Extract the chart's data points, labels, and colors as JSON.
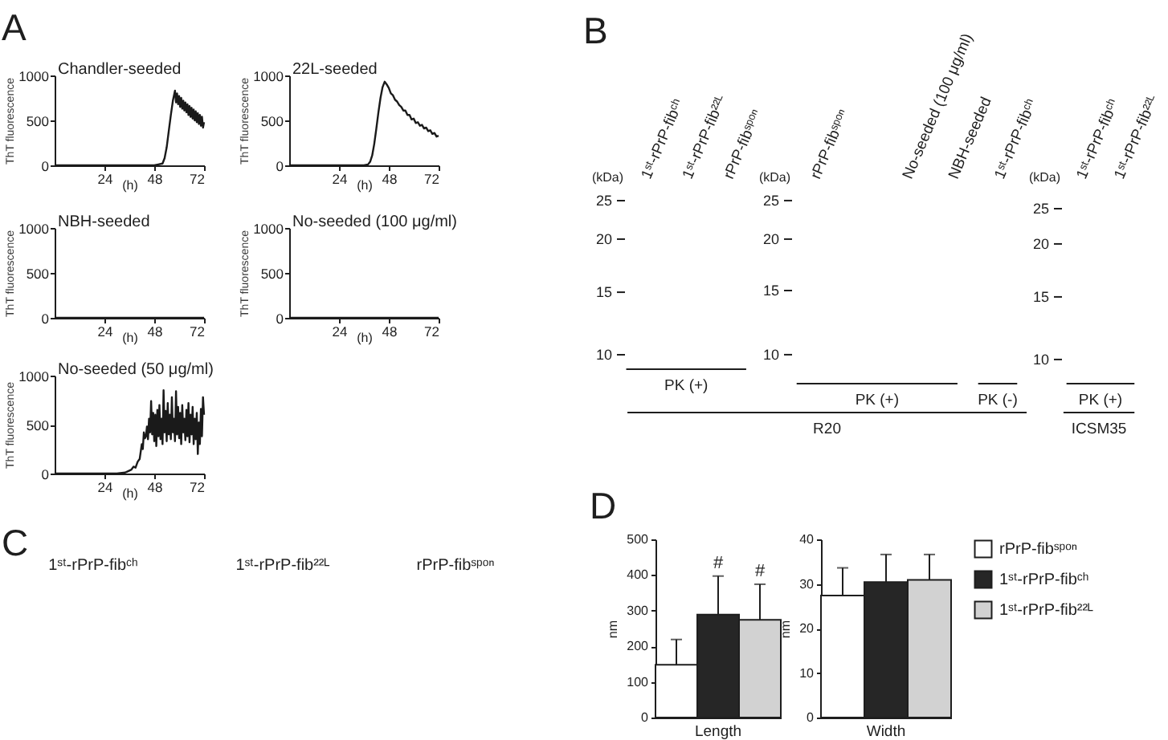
{
  "chart_data": [
    {
      "type": "line",
      "title": "Chandler-seeded",
      "annotations": [
        "A"
      ],
      "xlabel": "(h)",
      "ylabel": "ThT fluorescence",
      "color": "#1a1a1a",
      "xlim": [
        0,
        72
      ],
      "xticks": [
        24,
        48,
        72
      ],
      "ylim": [
        0,
        1000
      ],
      "yticks": [
        0,
        500,
        1000
      ],
      "x": [
        0,
        6,
        12,
        18,
        24,
        30,
        36,
        42,
        48,
        50,
        52,
        53,
        54,
        55,
        56,
        57,
        58,
        58.5,
        59,
        59.5,
        60,
        60.5,
        61,
        61.5,
        62,
        62.5,
        63,
        63.5,
        64,
        64.5,
        65,
        65.5,
        66,
        66.5,
        67,
        67.5,
        68,
        68.5,
        69,
        69.5,
        70,
        70.5,
        71,
        71.5,
        72
      ],
      "values": [
        0,
        0,
        0,
        0,
        0,
        0,
        0,
        0,
        0,
        10,
        20,
        80,
        200,
        380,
        560,
        720,
        830,
        700,
        800,
        680,
        770,
        650,
        750,
        630,
        720,
        610,
        700,
        590,
        680,
        560,
        660,
        540,
        640,
        520,
        620,
        500,
        600,
        480,
        580,
        460,
        560,
        440,
        540,
        420,
        480
      ]
    },
    {
      "type": "line",
      "title": "22L-seeded",
      "xlabel": "(h)",
      "ylabel": "ThT fluorescence",
      "color": "#1a1a1a",
      "xlim": [
        0,
        72
      ],
      "xticks": [
        24,
        48,
        72
      ],
      "ylim": [
        0,
        1000
      ],
      "yticks": [
        0,
        500,
        1000
      ],
      "x": [
        0,
        6,
        12,
        18,
        24,
        30,
        36,
        38,
        39,
        40,
        41,
        42,
        43,
        44,
        45,
        46,
        47,
        48,
        49,
        50,
        51,
        52,
        53,
        54,
        55,
        56,
        57,
        58,
        59,
        60,
        61,
        62,
        63,
        64,
        65,
        66,
        67,
        68,
        69,
        70,
        71,
        72
      ],
      "values": [
        0,
        0,
        0,
        0,
        0,
        0,
        0,
        10,
        40,
        110,
        240,
        410,
        590,
        750,
        870,
        930,
        900,
        860,
        800,
        780,
        730,
        710,
        670,
        650,
        610,
        610,
        560,
        560,
        510,
        520,
        470,
        480,
        440,
        450,
        410,
        420,
        380,
        390,
        350,
        360,
        320,
        330
      ]
    },
    {
      "type": "line",
      "title": "NBH-seeded",
      "xlabel": "(h)",
      "ylabel": "ThT fluorescence",
      "color": "#1a1a1a",
      "xlim": [
        0,
        72
      ],
      "xticks": [
        24,
        48,
        72
      ],
      "ylim": [
        0,
        1000
      ],
      "yticks": [
        0,
        500,
        1000
      ],
      "x": [
        0,
        24,
        48,
        72
      ],
      "values": [
        0,
        0,
        0,
        0
      ]
    },
    {
      "type": "line",
      "title": "No-seeded (100 μg/ml)",
      "xlabel": "(h)",
      "ylabel": "ThT fluorescence",
      "color": "#1a1a1a",
      "xlim": [
        0,
        72
      ],
      "xticks": [
        24,
        48,
        72
      ],
      "ylim": [
        0,
        1000
      ],
      "yticks": [
        0,
        500,
        1000
      ],
      "x": [
        0,
        24,
        48,
        72
      ],
      "values": [
        0,
        0,
        0,
        0
      ]
    },
    {
      "type": "line",
      "title": "No-seeded (50 μg/ml)",
      "xlabel": "(h)",
      "ylabel": "ThT fluorescence",
      "color": "#1a1a1a",
      "xlim": [
        0,
        72
      ],
      "xticks": [
        24,
        48,
        72
      ],
      "ylim": [
        0,
        1000
      ],
      "yticks": [
        0,
        500,
        1000
      ],
      "x": [
        0,
        8,
        16,
        24,
        30,
        34,
        35,
        36,
        37,
        38,
        39,
        40,
        41,
        42,
        42.5,
        43,
        43.5,
        44,
        44.5,
        45,
        45.5,
        46,
        46.5,
        47,
        47.5,
        48,
        48.5,
        49,
        49.5,
        50,
        50.5,
        51,
        51.5,
        52,
        52.5,
        53,
        53.5,
        54,
        54.5,
        55,
        55.5,
        56,
        56.5,
        57,
        57.5,
        58,
        58.5,
        59,
        59.5,
        60,
        60.5,
        61,
        61.5,
        62,
        62.5,
        63,
        63.5,
        64,
        64.5,
        65,
        65.5,
        66,
        66.5,
        67,
        67.5,
        68,
        68.5,
        69,
        69.5,
        70,
        70.5,
        71,
        71.5,
        72
      ],
      "values": [
        0,
        0,
        0,
        0,
        0,
        10,
        20,
        30,
        40,
        70,
        60,
        120,
        150,
        300,
        250,
        420,
        360,
        380,
        480,
        350,
        560,
        420,
        740,
        400,
        620,
        330,
        600,
        280,
        650,
        380,
        700,
        350,
        560,
        300,
        850,
        420,
        640,
        330,
        720,
        400,
        600,
        350,
        780,
        420,
        560,
        330,
        840,
        400,
        680,
        360,
        620,
        300,
        700,
        420,
        560,
        340,
        650,
        380,
        720,
        320,
        600,
        400,
        680,
        300,
        560,
        350,
        620,
        200,
        520,
        300,
        660,
        380,
        780,
        600
      ]
    },
    {
      "type": "other",
      "annotations": [
        "B",
        "(kDa)",
        "25",
        "20",
        "15",
        "10",
        "PK (+)",
        "R20"
      ],
      "categories": [
        "1ˢᵗ-rPrP-fibᶜʰ",
        "1ˢᵗ-rPrP-fib²²ᴸ",
        "rPrP-fibˢᵖᵒⁿ"
      ]
    },
    {
      "type": "other",
      "annotations": [
        "(kDa)",
        "25",
        "20",
        "15",
        "10",
        "PK (+)",
        "PK (-)"
      ],
      "categories": [
        "rPrP-fibˢᵖᵒⁿ",
        null,
        "No-seeded (100 μg/ml)",
        "NBH-seeded",
        "1ˢᵗ-rPrP-fibᶜʰ"
      ]
    },
    {
      "type": "other",
      "annotations": [
        "(kDa)",
        "25",
        "20",
        "15",
        "10",
        "PK (+)",
        "ICSM35"
      ],
      "categories": [
        "1ˢᵗ-rPrP-fibᶜʰ",
        "1ˢᵗ-rPrP-fib²²ᴸ"
      ]
    },
    {
      "type": "other",
      "title": "1ˢᵗ-rPrP-fibᶜʰ",
      "annotations": [
        "C"
      ]
    },
    {
      "type": "other",
      "title": "1ˢᵗ-rPrP-fib²²ᴸ"
    },
    {
      "type": "other",
      "title": "rPrP-fibˢᵖᵒⁿ"
    },
    {
      "type": "bar",
      "annotations": [
        "D"
      ],
      "categories": [
        "Length"
      ],
      "ylabel": "nm",
      "ylim": [
        0,
        500
      ],
      "yticks": [
        0,
        100,
        200,
        300,
        400,
        500
      ],
      "series": [
        {
          "color": "#ffffff",
          "values": [
            148
          ],
          "errors": [
            [
              148,
              219
            ]
          ]
        },
        {
          "color": "#262626",
          "values": [
            289
          ],
          "errors": [
            [
              289,
              397
            ]
          ],
          "value_labels": [
            "#"
          ]
        },
        {
          "color": "#d2d2d2",
          "values": [
            274
          ],
          "errors": [
            [
              274,
              374
            ]
          ],
          "value_labels": [
            "#"
          ]
        }
      ]
    },
    {
      "type": "bar",
      "categories": [
        "Width"
      ],
      "ylabel": "nm",
      "ylim": [
        0,
        40
      ],
      "yticks": [
        0,
        10,
        20,
        30,
        40
      ],
      "legend": "right",
      "series": [
        {
          "name": "rPrP-fibˢᵖᵒⁿ",
          "color": "#ffffff",
          "values": [
            27.4
          ],
          "errors": [
            [
              27.4,
              33.6
            ]
          ]
        },
        {
          "name": "1ˢᵗ-rPrP-fibᶜʰ",
          "color": "#262626",
          "values": [
            30.4
          ],
          "errors": [
            [
              30.4,
              36.6
            ]
          ]
        },
        {
          "name": "1ˢᵗ-rPrP-fib²²ᴸ",
          "color": "#d2d2d2",
          "values": [
            30.9
          ],
          "errors": [
            [
              30.9,
              36.6
            ]
          ]
        }
      ]
    }
  ]
}
